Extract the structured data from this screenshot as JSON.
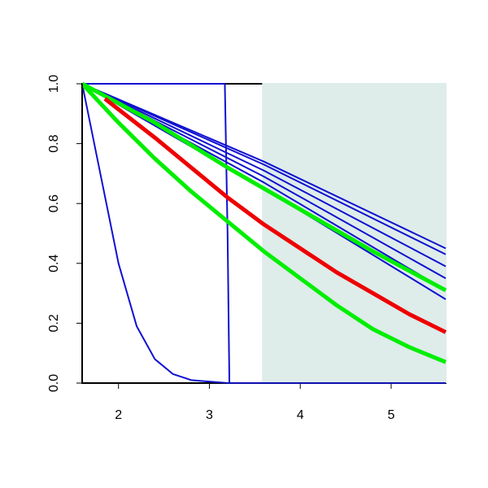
{
  "chart_data": {
    "type": "line",
    "xlim": [
      1.6,
      5.6
    ],
    "ylim": [
      0,
      1
    ],
    "xticks": [
      2,
      3,
      4,
      5
    ],
    "yticks": [
      {
        "value": 0,
        "label": "0.0"
      },
      0.2,
      0.4,
      0.6,
      0.8,
      {
        "value": 1,
        "label": "1.0"
      }
    ],
    "shade": {
      "xlim": [
        3.58,
        5.6
      ],
      "color": "#deecea"
    },
    "series": [
      {
        "color": "#1010d0",
        "width": 2,
        "x": [
          1.6,
          1.8,
          2.0,
          2.2,
          2.4,
          2.6,
          2.8,
          3.2,
          5.6
        ],
        "values": [
          1,
          0.7,
          0.4,
          0.19,
          0.08,
          0.03,
          0.01,
          0,
          0
        ]
      },
      {
        "color": "#1010d0",
        "width": 2,
        "x": [
          1.6,
          3.17,
          3.2,
          3.22,
          5.6
        ],
        "values": [
          1,
          1,
          0.5,
          0,
          0
        ]
      },
      {
        "color": "#1010d0",
        "width": 2,
        "x": [
          1.6,
          3.6,
          5.6
        ],
        "values": [
          1,
          0.74,
          0.45
        ]
      },
      {
        "color": "#1010d0",
        "width": 2,
        "x": [
          1.6,
          3.6,
          5.6
        ],
        "values": [
          1,
          0.73,
          0.43
        ]
      },
      {
        "color": "#1010d0",
        "width": 2,
        "x": [
          1.6,
          3.6,
          5.6
        ],
        "values": [
          1,
          0.71,
          0.39
        ]
      },
      {
        "color": "#1010d0",
        "width": 2,
        "x": [
          1.6,
          3.6,
          5.6
        ],
        "values": [
          1,
          0.69,
          0.35
        ]
      },
      {
        "color": "#1010d0",
        "width": 2,
        "x": [
          1.6,
          3.6,
          5.6
        ],
        "values": [
          1,
          0.67,
          0.31
        ]
      },
      {
        "color": "#1010d0",
        "width": 2,
        "x": [
          1.6,
          3.6,
          5.6
        ],
        "values": [
          1,
          0.65,
          0.28
        ]
      },
      {
        "color": "#00ee00",
        "width": 5,
        "x": [
          1.6,
          2.4,
          3.2,
          4.0,
          4.8,
          5.6
        ],
        "values": [
          1,
          0.87,
          0.72,
          0.58,
          0.44,
          0.31
        ]
      },
      {
        "color": "#ee0000",
        "width": 5,
        "x": [
          1.85,
          2.4,
          2.8,
          3.2,
          3.6,
          4.0,
          4.4,
          4.8,
          5.2,
          5.6
        ],
        "values": [
          0.95,
          0.82,
          0.72,
          0.62,
          0.53,
          0.45,
          0.37,
          0.3,
          0.23,
          0.17
        ]
      },
      {
        "color": "#00ee00",
        "width": 5,
        "x": [
          1.6,
          2.0,
          2.4,
          2.8,
          3.2,
          3.6,
          4.0,
          4.4,
          4.8,
          5.2,
          5.6
        ],
        "values": [
          1,
          0.87,
          0.75,
          0.64,
          0.54,
          0.44,
          0.35,
          0.26,
          0.18,
          0.12,
          0.07
        ]
      }
    ]
  }
}
